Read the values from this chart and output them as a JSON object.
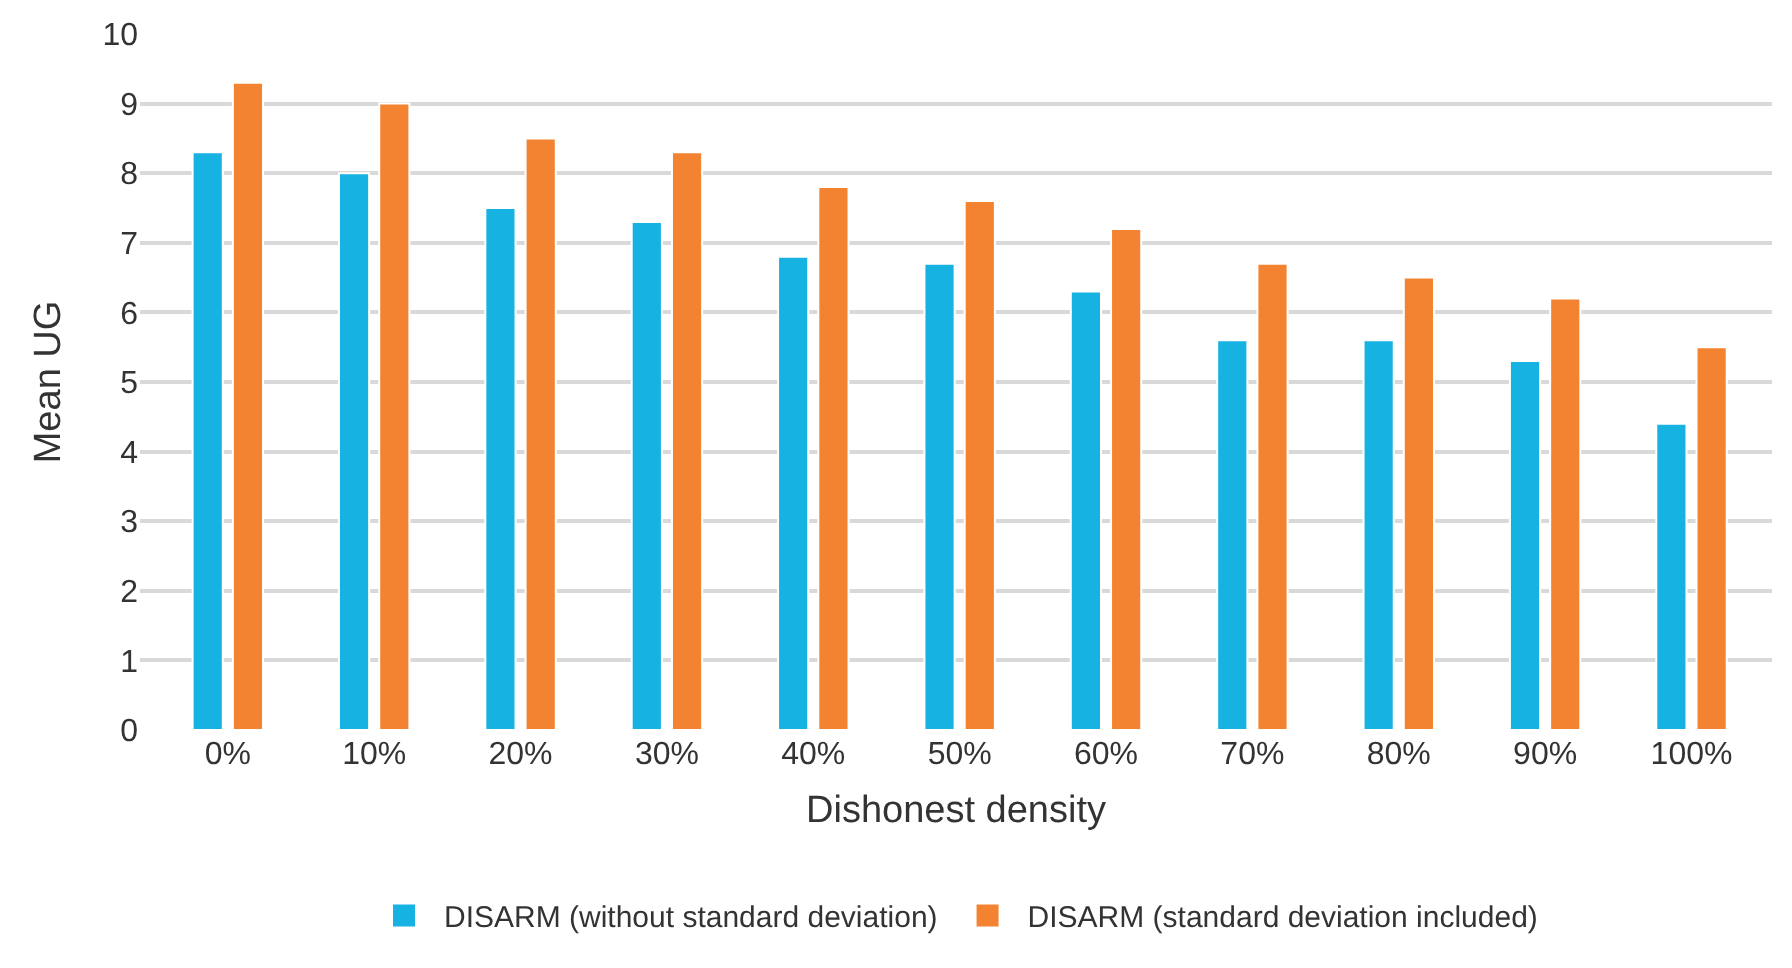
{
  "chart_data": {
    "type": "bar",
    "xlabel": "Dishonest density",
    "ylabel": "Mean UG",
    "categories": [
      "0%",
      "10%",
      "20%",
      "30%",
      "40%",
      "50%",
      "60%",
      "70%",
      "80%",
      "90%",
      "100%"
    ],
    "series": [
      {
        "name": "DISARM (without standard deviation)",
        "color": "#16b2e2",
        "values": [
          8.3,
          8.0,
          7.5,
          7.3,
          6.8,
          6.7,
          6.3,
          5.6,
          5.6,
          5.3,
          4.4
        ]
      },
      {
        "name": "DISARM (standard deviation included)",
        "color": "#f38330",
        "values": [
          9.3,
          9.0,
          8.5,
          8.3,
          7.8,
          7.6,
          7.2,
          6.7,
          6.5,
          6.2,
          5.5
        ]
      }
    ],
    "ylim": [
      0,
      10
    ],
    "yticks": [
      0,
      1,
      2,
      3,
      4,
      5,
      6,
      7,
      8,
      9,
      10
    ],
    "grid": "y",
    "legend": "bottom"
  }
}
